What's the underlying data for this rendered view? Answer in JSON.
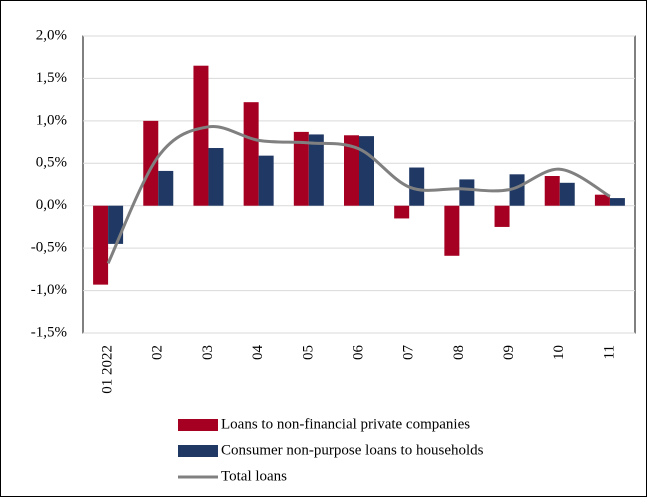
{
  "chart_data": {
    "type": "bar",
    "categories": [
      "01 2022",
      "02",
      "03",
      "04",
      "05",
      "06",
      "07",
      "08",
      "09",
      "10",
      "11"
    ],
    "series": [
      {
        "name": "Loans to non-financial private companies",
        "color": "#a50021",
        "values": [
          -0.93,
          1.0,
          1.65,
          1.22,
          0.87,
          0.83,
          -0.15,
          -0.59,
          -0.25,
          0.35,
          0.13
        ]
      },
      {
        "name": "Consumer non-purpose loans to households",
        "color": "#1f3864",
        "values": [
          -0.45,
          0.41,
          0.68,
          0.59,
          0.84,
          0.82,
          0.45,
          0.31,
          0.37,
          0.27,
          0.09
        ]
      },
      {
        "name": "Total loans",
        "type": "line",
        "color": "#808080",
        "values": [
          -0.68,
          0.58,
          0.93,
          0.77,
          0.74,
          0.67,
          0.22,
          0.2,
          0.19,
          0.43,
          0.11
        ]
      }
    ],
    "ylim": [
      -1.5,
      2.0
    ],
    "yticks": [
      {
        "value": -1.5,
        "label": "-1,5%"
      },
      {
        "value": -1.0,
        "label": "-1,0%"
      },
      {
        "value": -0.5,
        "label": "-0,5%"
      },
      {
        "value": 0,
        "label": "0,0%"
      },
      {
        "value": 0.5,
        "label": "0,5%"
      },
      {
        "value": 1.0,
        "label": "1,0%"
      },
      {
        "value": 1.5,
        "label": "1,5%"
      },
      {
        "value": 2.0,
        "label": "2,0%"
      }
    ],
    "grid": true,
    "legend": "bottom"
  }
}
